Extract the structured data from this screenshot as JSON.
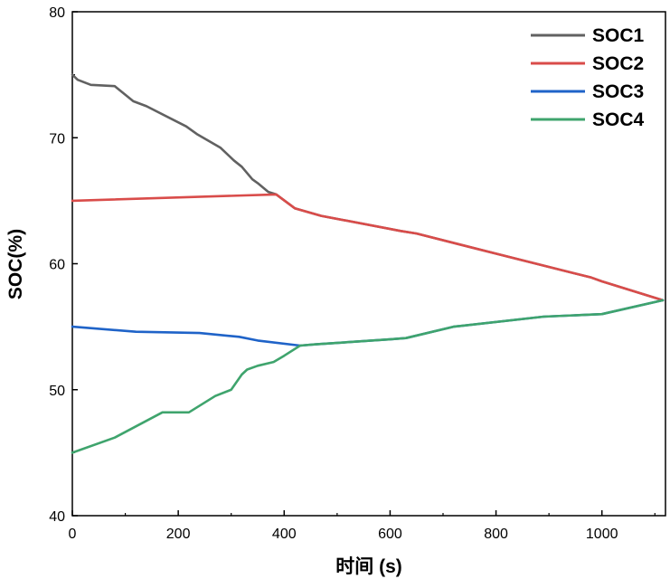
{
  "chart_data": {
    "type": "line",
    "title": "",
    "xlabel": "时间 (s)",
    "ylabel": "SOC(%)",
    "xlim": [
      0,
      1120
    ],
    "ylim": [
      40,
      80
    ],
    "xticks": [
      0,
      200,
      400,
      600,
      800,
      1000
    ],
    "yticks": [
      40,
      50,
      60,
      70,
      80
    ],
    "legend_position": "top-right",
    "series": [
      {
        "name": "SOC1",
        "color": "#616161",
        "points": [
          [
            0,
            75.0
          ],
          [
            10,
            74.6
          ],
          [
            35,
            74.2
          ],
          [
            80,
            74.1
          ],
          [
            115,
            72.9
          ],
          [
            140,
            72.5
          ],
          [
            215,
            70.9
          ],
          [
            235,
            70.3
          ],
          [
            280,
            69.2
          ],
          [
            305,
            68.2
          ],
          [
            320,
            67.7
          ],
          [
            340,
            66.7
          ],
          [
            350,
            66.4
          ],
          [
            370,
            65.7
          ],
          [
            385,
            65.5
          ],
          [
            420,
            64.4
          ],
          [
            470,
            63.8
          ],
          [
            620,
            62.6
          ],
          [
            650,
            62.4
          ],
          [
            800,
            60.8
          ],
          [
            980,
            58.9
          ],
          [
            1000,
            58.6
          ],
          [
            1115,
            57.1
          ]
        ]
      },
      {
        "name": "SOC2",
        "color": "#d94c4a",
        "points": [
          [
            0,
            65.0
          ],
          [
            385,
            65.5
          ],
          [
            420,
            64.4
          ],
          [
            470,
            63.8
          ],
          [
            620,
            62.6
          ],
          [
            650,
            62.4
          ],
          [
            800,
            60.8
          ],
          [
            980,
            58.9
          ],
          [
            1000,
            58.6
          ],
          [
            1115,
            57.1
          ]
        ]
      },
      {
        "name": "SOC3",
        "color": "#1f63c8",
        "points": [
          [
            0,
            55.0
          ],
          [
            120,
            54.6
          ],
          [
            240,
            54.5
          ],
          [
            315,
            54.2
          ],
          [
            350,
            53.9
          ],
          [
            430,
            53.5
          ],
          [
            460,
            53.6
          ],
          [
            600,
            54.0
          ],
          [
            630,
            54.1
          ],
          [
            720,
            55.0
          ],
          [
            890,
            55.8
          ],
          [
            1000,
            56.0
          ],
          [
            1115,
            57.1
          ]
        ]
      },
      {
        "name": "SOC4",
        "color": "#3fa46d",
        "points": [
          [
            0,
            45.0
          ],
          [
            80,
            46.2
          ],
          [
            170,
            48.2
          ],
          [
            220,
            48.2
          ],
          [
            270,
            49.5
          ],
          [
            300,
            50.0
          ],
          [
            320,
            51.2
          ],
          [
            330,
            51.6
          ],
          [
            350,
            51.9
          ],
          [
            380,
            52.2
          ],
          [
            400,
            52.7
          ],
          [
            430,
            53.5
          ],
          [
            460,
            53.6
          ],
          [
            600,
            54.0
          ],
          [
            630,
            54.1
          ],
          [
            720,
            55.0
          ],
          [
            890,
            55.8
          ],
          [
            1000,
            56.0
          ],
          [
            1115,
            57.1
          ]
        ]
      }
    ]
  }
}
